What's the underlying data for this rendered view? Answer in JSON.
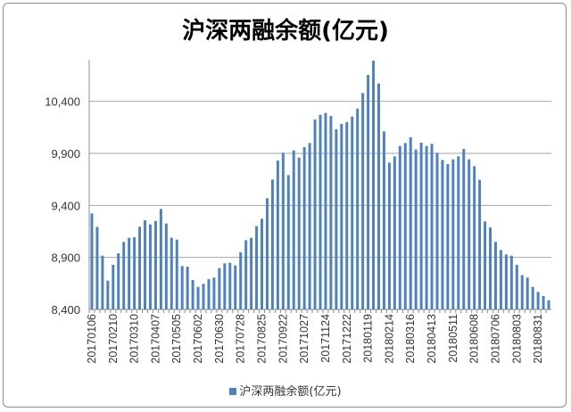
{
  "chart_data": {
    "type": "bar",
    "title": "沪深两融余额(亿元)",
    "xlabel": "",
    "ylabel": "",
    "ylim": [
      8400,
      10800
    ],
    "yticks": [
      8400,
      8900,
      9400,
      9900,
      10400
    ],
    "ytick_labels": [
      "8,400",
      "8,900",
      "9,400",
      "9,900",
      "10,400"
    ],
    "grid": true,
    "legend": "bottom",
    "color": "#4f81bd",
    "series": [
      {
        "name": "沪深两融余额(亿元)",
        "values": [
          9323,
          9194,
          8917,
          8677,
          8829,
          8940,
          9049,
          9089,
          9094,
          9194,
          9257,
          9217,
          9251,
          9366,
          9226,
          9089,
          9071,
          8817,
          8811,
          8683,
          8617,
          8646,
          8691,
          8706,
          8797,
          8843,
          8849,
          8823,
          8949,
          9066,
          9089,
          9200,
          9271,
          9469,
          9649,
          9831,
          9906,
          9691,
          9929,
          9860,
          9960,
          10000,
          10226,
          10271,
          10289,
          10260,
          10131,
          10183,
          10200,
          10254,
          10331,
          10480,
          10654,
          10791,
          10571,
          10111,
          9811,
          9871,
          9971,
          10000,
          10054,
          9937,
          10003,
          9971,
          9991,
          9906,
          9837,
          9797,
          9843,
          9871,
          9943,
          9843,
          9777,
          9646,
          9246,
          9189,
          9049,
          8971,
          8929,
          8917,
          8829,
          8729,
          8706,
          8617,
          8569,
          8529,
          8489
        ]
      }
    ],
    "tick_every": 4,
    "tick_labels": [
      "20170106",
      "20170210",
      "20170310",
      "20170407",
      "20170505",
      "20170602",
      "20170630",
      "20170728",
      "20170825",
      "20170922",
      "20171027",
      "20171124",
      "20171222",
      "20180119",
      "20180214",
      "20180316",
      "20180413",
      "20180511",
      "20180608",
      "20180706",
      "20180803",
      "20180831"
    ]
  }
}
